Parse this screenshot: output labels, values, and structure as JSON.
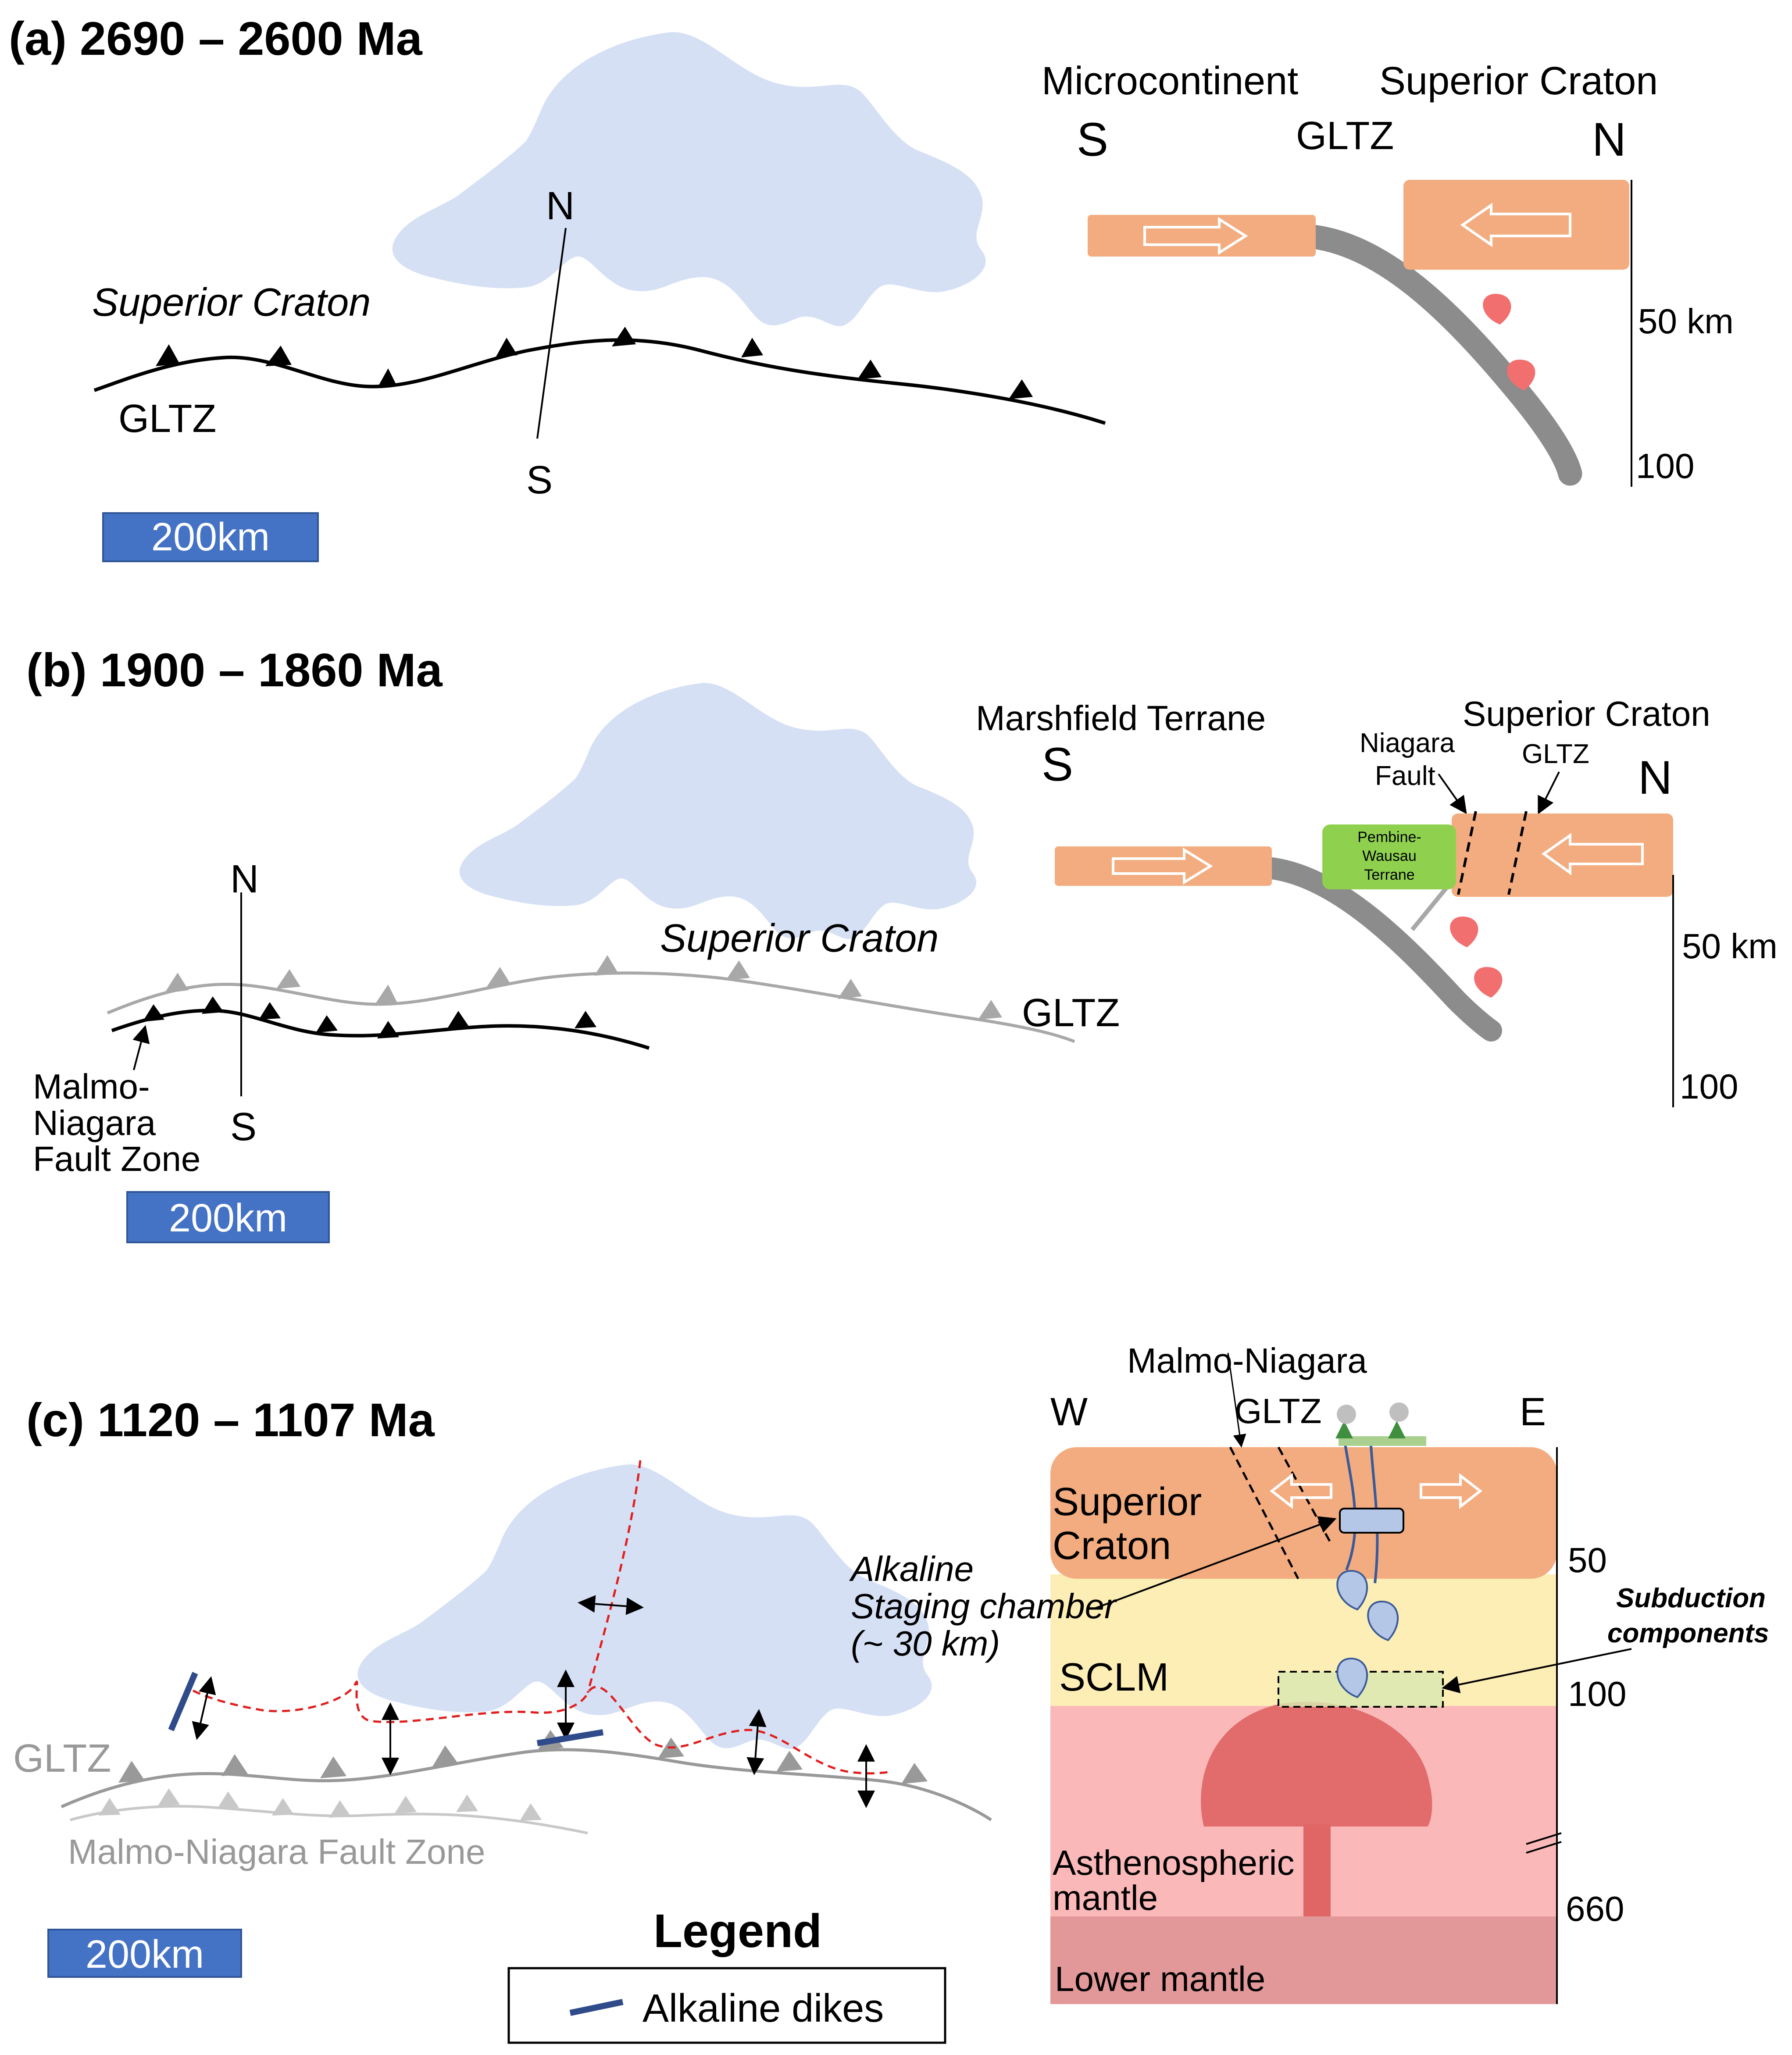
{
  "colors": {
    "lake": "#d6e0f5",
    "crust": "#f3ac7f",
    "slab": "#8c8c8c",
    "melt": "#f26f6f",
    "scale_bar": "#4472c4",
    "pembine": "#8fd14f",
    "dike": "#2f4b8a",
    "sclm": "#fdeeb5",
    "astheno": "#fbb8b8",
    "plume": "#e06666",
    "lower_mantle": "#e29898",
    "magma_blue": "#b4c7e7"
  },
  "panel_a": {
    "title": "(a) 2690 – 2600 Ma",
    "map": {
      "craton_label": "Superior Craton",
      "fault_label": "GLTZ",
      "north": "N",
      "south": "S",
      "scale": "200km"
    },
    "section": {
      "left_block": "Microcontinent",
      "right_block": "Superior Craton",
      "left_dir": "S",
      "right_dir": "N",
      "suture": "GLTZ",
      "depth_mid": "50 km",
      "depth_deep": "100"
    }
  },
  "panel_b": {
    "title": "(b) 1900 – 1860 Ma",
    "map": {
      "craton_label": "Superior Craton",
      "fault_label": "GLTZ",
      "fault_zone_lines": [
        "Malmo-",
        "Niagara",
        "Fault Zone"
      ],
      "north": "N",
      "south": "S",
      "scale": "200km"
    },
    "section": {
      "left_block": "Marshfield Terrane",
      "right_block": "Superior Craton",
      "left_dir": "S",
      "right_dir": "N",
      "fault_1_lines": [
        "Niagara",
        "Fault"
      ],
      "fault_2": "GLTZ",
      "terrane_lines": [
        "Pembine-",
        "Wausau",
        "Terrane"
      ],
      "depth_mid": "50 km",
      "depth_deep": "100"
    }
  },
  "panel_c": {
    "title": "(c) 1120 – 1107 Ma",
    "map": {
      "fault_label": "GLTZ",
      "fault_zone": "Malmo-Niagara Fault Zone",
      "scale": "200km"
    },
    "legend": {
      "title": "Legend",
      "item": "Alkaline dikes"
    },
    "section": {
      "west": "W",
      "east": "E",
      "fault_1": "Malmo-Niagara",
      "fault_2": "GLTZ",
      "craton_lines": [
        "Superior",
        "Craton"
      ],
      "chamber_lines": [
        "Alkaline",
        "Staging chamber",
        "(~ 30 km)"
      ],
      "subduction_lines": [
        "Subduction",
        "components"
      ],
      "sclm": "SCLM",
      "astheno_lines": [
        "Asthenospheric",
        "mantle"
      ],
      "lower_mantle": "Lower mantle",
      "depth_50": "50",
      "depth_100": "100",
      "depth_660": "660"
    }
  }
}
